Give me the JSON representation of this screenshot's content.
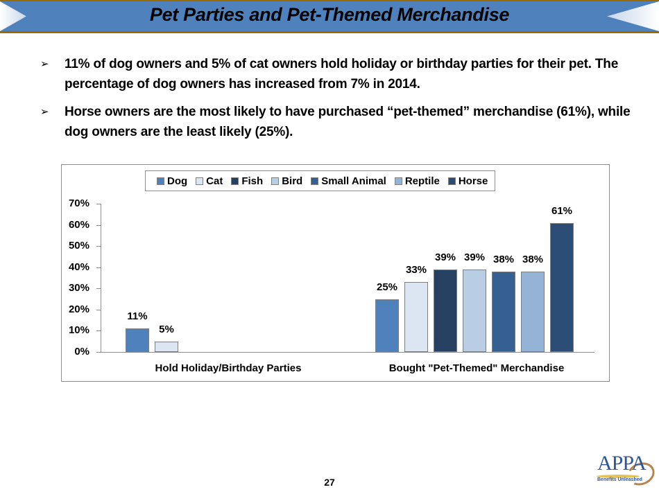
{
  "header": {
    "title": "Pet Parties and Pet-Themed Merchandise"
  },
  "bullets": [
    {
      "icon": "arrow-bullet-icon",
      "text": "11% of dog owners and 5% of cat owners hold holiday or birthday parties for their pet. The percentage of dog owners has increased from 7% in 2014."
    },
    {
      "icon": "arrow-bullet-icon",
      "text": "Horse owners are the most likely to have purchased “pet-themed” merchandise (61%), while dog owners are the least likely (25%)."
    }
  ],
  "chart_data": {
    "type": "bar",
    "title": "",
    "xlabel": "",
    "ylabel": "",
    "ylim": [
      0,
      70
    ],
    "yticks": [
      "0%",
      "10%",
      "20%",
      "30%",
      "40%",
      "50%",
      "60%",
      "70%"
    ],
    "grid": false,
    "legend_position": "top",
    "categories": [
      "Hold Holiday/Birthday Parties",
      "Bought \"Pet-Themed\" Merchandise"
    ],
    "series": [
      {
        "name": "Dog",
        "color": "#4f81bd",
        "values": [
          11,
          25
        ],
        "labels": [
          "11%",
          "25%"
        ]
      },
      {
        "name": "Cat",
        "color": "#dce6f2",
        "values": [
          5,
          33
        ],
        "labels": [
          "5%",
          "33%"
        ]
      },
      {
        "name": "Fish",
        "color": "#254061",
        "values": [
          null,
          39
        ],
        "labels": [
          "",
          "39%"
        ]
      },
      {
        "name": "Bird",
        "color": "#b9cde5",
        "values": [
          null,
          39
        ],
        "labels": [
          "",
          "39%"
        ]
      },
      {
        "name": "Small Animal",
        "color": "#376092",
        "values": [
          null,
          38
        ],
        "labels": [
          "",
          "38%"
        ]
      },
      {
        "name": "Reptile",
        "color": "#95b3d7",
        "values": [
          null,
          38
        ],
        "labels": [
          "",
          "38%"
        ]
      },
      {
        "name": "Horse",
        "color": "#2c4d75",
        "values": [
          null,
          61
        ],
        "labels": [
          "",
          "61%"
        ]
      }
    ]
  },
  "footer": {
    "page_number": "27",
    "logo_text": "APPA",
    "logo_tagline": "Benefits Unleashed"
  }
}
